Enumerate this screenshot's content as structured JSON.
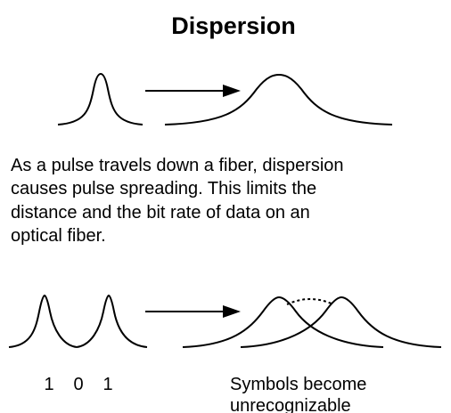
{
  "title": "Dispersion",
  "description": [
    "As a pulse travels down a fiber, dispersion",
    "causes pulse spreading. This limits the",
    "distance and the bit rate of data on an",
    "optical fiber."
  ],
  "bits": [
    "1",
    "0",
    "1"
  ],
  "caption": [
    "Symbols become",
    "unrecognizable"
  ]
}
